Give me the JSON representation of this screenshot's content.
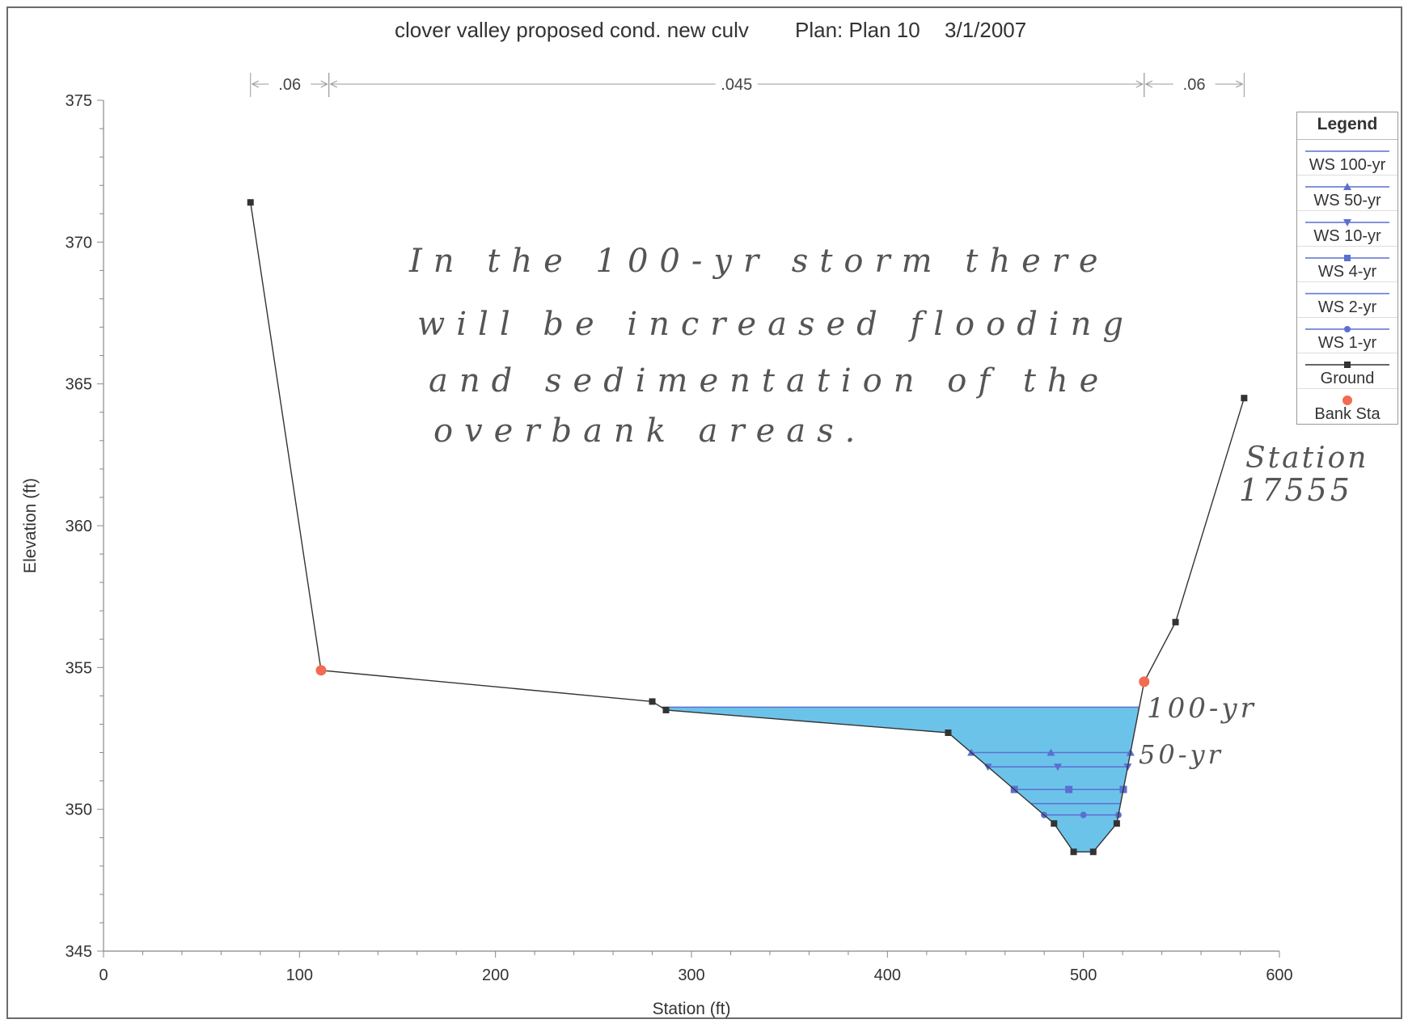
{
  "header": {
    "title": "clover valley proposed cond. new culv",
    "plan": "Plan: Plan 10",
    "date": "3/1/2007"
  },
  "legend": {
    "title": "Legend",
    "items": [
      {
        "label": "WS 100-yr",
        "marker": "none",
        "color": "#5b6fd1"
      },
      {
        "label": "WS 50-yr",
        "marker": "triangle-up",
        "color": "#5b6fd1"
      },
      {
        "label": "WS 10-yr",
        "marker": "triangle-down",
        "color": "#5b6fd1"
      },
      {
        "label": "WS 4-yr",
        "marker": "square",
        "color": "#5b6fd1"
      },
      {
        "label": "WS 2-yr",
        "marker": "none",
        "color": "#5b6fd1"
      },
      {
        "label": "WS 1-yr",
        "marker": "circle",
        "color": "#5b6fd1"
      },
      {
        "label": "Ground",
        "marker": "square",
        "color": "#333333"
      },
      {
        "label": "Bank Sta",
        "marker": "circle",
        "color": "#f26b52"
      }
    ]
  },
  "annotations": {
    "note_line1": "In the 100-yr storm there",
    "note_line2": "will be increased flooding",
    "note_line3": "and sedimentation of the",
    "note_line4": "overbank areas.",
    "station_label": "Station",
    "station_number": "17555",
    "label_100yr": "100-yr",
    "label_50yr": "50-yr"
  },
  "colors": {
    "water_fill": "#6cc3ea",
    "ws_line": "#5b6fd1",
    "ground": "#333333",
    "bank_station": "#f26b52",
    "axis": "#888888"
  },
  "chart_data": {
    "type": "line",
    "title": "clover valley proposed cond. new culv   Plan: Plan 10   3/1/2007",
    "xlabel": "Station (ft)",
    "ylabel": "Elevation (ft)",
    "xlim": [
      0,
      600
    ],
    "ylim": [
      345,
      375
    ],
    "xticks": [
      0,
      100,
      200,
      300,
      400,
      500,
      600
    ],
    "yticks": [
      345,
      350,
      355,
      360,
      365,
      370,
      375
    ],
    "ground": {
      "x": [
        75,
        111,
        280,
        287,
        431,
        485,
        495,
        505,
        517,
        531,
        547,
        582
      ],
      "y": [
        371.4,
        354.9,
        353.8,
        353.5,
        352.7,
        349.5,
        348.5,
        348.5,
        349.5,
        354.5,
        356.6,
        364.5
      ]
    },
    "bank_stations": {
      "x": [
        111,
        531
      ],
      "y": [
        354.9,
        354.5
      ]
    },
    "manning_n": [
      {
        "value": ".06",
        "from": 75,
        "to": 115
      },
      {
        "value": ".045",
        "from": 115,
        "to": 531
      },
      {
        "value": ".06",
        "from": 531,
        "to": 582
      }
    ],
    "water_surfaces": [
      {
        "name": "WS 100-yr",
        "elevation": 353.6,
        "marker": "none"
      },
      {
        "name": "WS 50-yr",
        "elevation": 352.0,
        "marker": "triangle-up"
      },
      {
        "name": "WS 10-yr",
        "elevation": 351.5,
        "marker": "triangle-down"
      },
      {
        "name": "WS 4-yr",
        "elevation": 350.7,
        "marker": "square"
      },
      {
        "name": "WS 2-yr",
        "elevation": 350.2,
        "marker": "none"
      },
      {
        "name": "WS 1-yr",
        "elevation": 349.8,
        "marker": "circle"
      }
    ],
    "grid": false,
    "legend_position": "right"
  }
}
